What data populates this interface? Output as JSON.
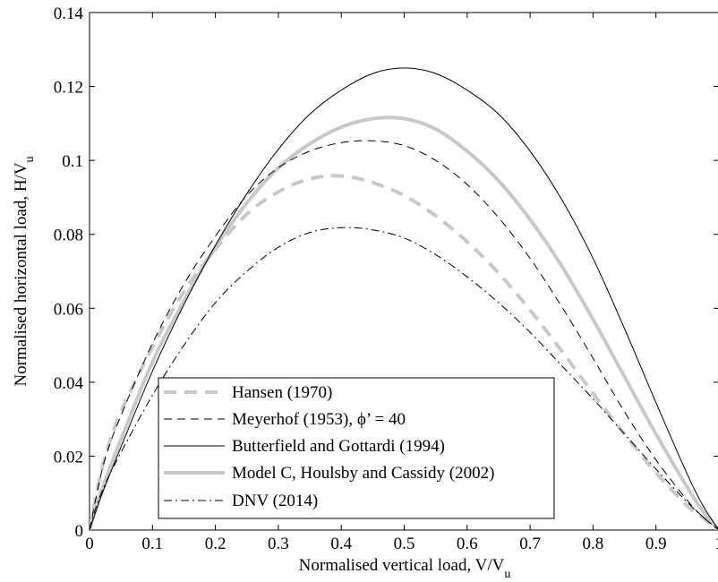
{
  "chart_data": {
    "type": "line",
    "xlabel": "Normalised vertical load, V/V",
    "xlabel_sub": "u",
    "ylabel": "Normalised horizontal load, H/V",
    "ylabel_sub": "u",
    "xlim": [
      0,
      1
    ],
    "ylim": [
      0,
      0.14
    ],
    "x_ticks": [
      0,
      0.1,
      0.2,
      0.3,
      0.4,
      0.5,
      0.6,
      0.7,
      0.8,
      0.9,
      1
    ],
    "x_tick_labels": [
      "0",
      "0.1",
      "0.2",
      "0.3",
      "0.4",
      "0.5",
      "0.6",
      "0.7",
      "0.8",
      "0.9",
      "1"
    ],
    "y_ticks": [
      0,
      0.02,
      0.04,
      0.06,
      0.08,
      0.1,
      0.12,
      0.14
    ],
    "y_tick_labels": [
      "0",
      "0.02",
      "0.04",
      "0.06",
      "0.08",
      "0.1",
      "0.12",
      "0.14"
    ],
    "grid": false,
    "legend_position": "bottom-left",
    "x": [
      0,
      0.01,
      0.025,
      0.05,
      0.1,
      0.15,
      0.2,
      0.25,
      0.3,
      0.35,
      0.4,
      0.45,
      0.5,
      0.55,
      0.6,
      0.65,
      0.7,
      0.75,
      0.8,
      0.85,
      0.9,
      0.95,
      0.975,
      1
    ],
    "series": [
      {
        "name": "Hansen (1970)",
        "style": "thick-grey-dashed",
        "color": "#c8c8c8",
        "values": [
          0,
          0.009,
          0.02,
          0.032,
          0.0495,
          0.0645,
          0.076,
          0.0855,
          0.0915,
          0.095,
          0.0958,
          0.094,
          0.0905,
          0.085,
          0.078,
          0.0695,
          0.0595,
          0.0485,
          0.037,
          0.026,
          0.0155,
          0.0065,
          0.0033,
          0
        ]
      },
      {
        "name": "Meyerhof (1953), ϕ’ = 40",
        "style": "thin-black-dashed",
        "color": "#000000",
        "values": [
          0,
          0.0085,
          0.0195,
          0.031,
          0.0505,
          0.0665,
          0.0795,
          0.0905,
          0.098,
          0.1025,
          0.1048,
          0.1053,
          0.104,
          0.1,
          0.0935,
          0.0845,
          0.0735,
          0.0605,
          0.0465,
          0.032,
          0.019,
          0.008,
          0.0035,
          0
        ]
      },
      {
        "name": "Butterfield and Gottardi (1994)",
        "style": "thin-black-solid",
        "color": "#000000",
        "values": [
          0,
          0.005,
          0.012,
          0.0225,
          0.043,
          0.061,
          0.077,
          0.091,
          0.103,
          0.1125,
          0.119,
          0.1235,
          0.125,
          0.1235,
          0.119,
          0.1125,
          0.1025,
          0.0895,
          0.0735,
          0.0545,
          0.0345,
          0.015,
          0.0065,
          0
        ]
      },
      {
        "name": "Model C, Houlsby and Cassidy (2002)",
        "style": "thick-grey-solid",
        "color": "#c8c8c8",
        "values": [
          0,
          0.006,
          0.0135,
          0.0245,
          0.0455,
          0.062,
          0.0765,
          0.0885,
          0.098,
          0.1045,
          0.109,
          0.1113,
          0.1113,
          0.1085,
          0.1025,
          0.0945,
          0.084,
          0.0715,
          0.057,
          0.0415,
          0.026,
          0.0115,
          0.005,
          0
        ]
      },
      {
        "name": "DNV (2014)",
        "style": "thin-black-dashdot",
        "color": "#000000",
        "values": [
          0,
          0.006,
          0.0125,
          0.021,
          0.0365,
          0.05,
          0.0615,
          0.07,
          0.0765,
          0.0805,
          0.0818,
          0.0812,
          0.079,
          0.0745,
          0.0685,
          0.0615,
          0.0535,
          0.0445,
          0.0355,
          0.026,
          0.0165,
          0.0075,
          0.0035,
          0
        ]
      }
    ]
  }
}
